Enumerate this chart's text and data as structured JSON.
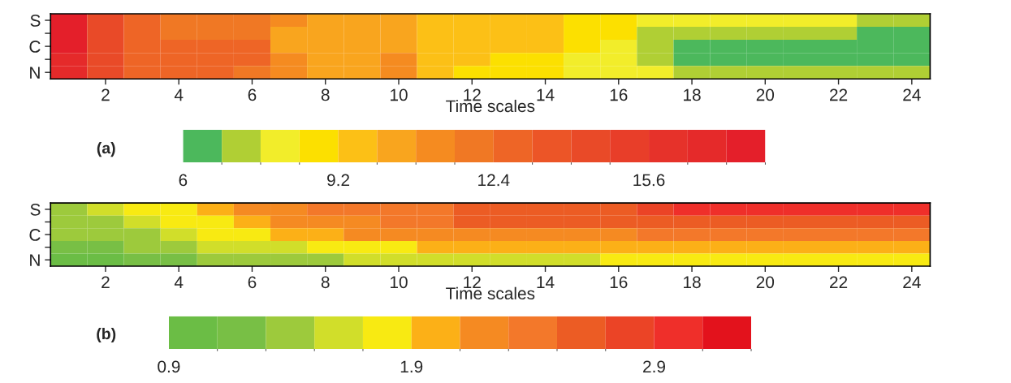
{
  "chart_data": [
    {
      "type": "heatmap",
      "xlabel": "Time scales",
      "annotations": [
        "(a)"
      ],
      "categories": [
        null,
        "2",
        null,
        "4",
        null,
        "6",
        null,
        "8",
        null,
        "10",
        null,
        "12",
        null,
        "14",
        null,
        "16",
        null,
        "18",
        null,
        "20",
        null,
        "22",
        null,
        "24"
      ],
      "y_categories": [
        "S",
        null,
        "C",
        null,
        "N"
      ],
      "cells": [
        [
          17.6,
          14.4,
          12.8,
          12.0,
          12.0,
          12.0,
          11.2,
          10.4,
          10.4,
          10.4,
          9.6,
          9.6,
          9.6,
          9.6,
          8.8,
          8.8,
          8.0,
          8.0,
          8.0,
          8.0,
          8.0,
          8.0,
          7.2,
          7.2
        ],
        [
          17.6,
          14.4,
          12.8,
          12.0,
          12.0,
          12.0,
          10.4,
          10.4,
          10.4,
          10.4,
          9.6,
          9.6,
          9.6,
          9.6,
          8.8,
          8.8,
          7.2,
          7.2,
          7.2,
          7.2,
          7.2,
          7.2,
          6.4,
          6.4
        ],
        [
          17.6,
          14.4,
          12.8,
          12.8,
          12.8,
          12.8,
          10.4,
          10.4,
          10.4,
          10.4,
          9.6,
          9.6,
          9.6,
          9.6,
          8.8,
          8.0,
          7.2,
          6.4,
          6.4,
          6.4,
          6.4,
          6.4,
          6.4,
          6.4
        ],
        [
          16.8,
          14.4,
          12.8,
          12.8,
          12.8,
          12.8,
          11.2,
          10.4,
          10.4,
          11.2,
          9.6,
          9.6,
          8.8,
          8.8,
          8.0,
          8.0,
          7.2,
          6.4,
          6.4,
          6.4,
          6.4,
          6.4,
          6.4,
          6.4
        ],
        [
          16.8,
          14.4,
          12.8,
          12.8,
          12.8,
          12.0,
          11.2,
          10.4,
          10.4,
          11.2,
          9.6,
          8.8,
          8.8,
          8.8,
          8.0,
          8.0,
          8.0,
          7.2,
          7.2,
          7.2,
          7.2,
          7.2,
          7.2,
          7.2
        ]
      ],
      "clim": [
        6,
        18
      ],
      "cticks": [
        6,
        9.2,
        12.4,
        15.6
      ],
      "colors": [
        "#4cb85c",
        "#b0cf34",
        "#f2ed2a",
        "#fce000",
        "#fcc016",
        "#f9a51e",
        "#f58b20",
        "#f07824",
        "#ee6526",
        "#ec5527",
        "#e94a28",
        "#e83e29",
        "#e6322a",
        "#e52a2a",
        "#e41f2a"
      ]
    },
    {
      "type": "heatmap",
      "xlabel": "Time scales",
      "annotations": [
        "(b)"
      ],
      "categories": [
        null,
        "2",
        null,
        "4",
        null,
        "6",
        null,
        "8",
        null,
        "10",
        null,
        "12",
        null,
        "14",
        null,
        "16",
        null,
        "18",
        null,
        "20",
        null,
        "22",
        null,
        "24"
      ],
      "y_categories": [
        "S",
        null,
        "C",
        null,
        "N"
      ],
      "cells": [
        [
          1.4,
          1.6,
          1.8,
          1.8,
          2.0,
          2.2,
          2.2,
          2.4,
          2.4,
          2.4,
          2.4,
          2.6,
          2.6,
          2.6,
          2.6,
          2.6,
          2.8,
          3.0,
          3.0,
          3.0,
          3.0,
          3.0,
          3.0,
          3.0
        ],
        [
          1.4,
          1.4,
          1.6,
          1.8,
          1.8,
          2.0,
          2.2,
          2.2,
          2.2,
          2.4,
          2.4,
          2.6,
          2.6,
          2.6,
          2.6,
          2.6,
          2.6,
          2.6,
          2.6,
          2.6,
          2.6,
          2.6,
          2.6,
          2.6
        ],
        [
          1.4,
          1.4,
          1.4,
          1.6,
          1.8,
          1.8,
          2.0,
          2.0,
          2.2,
          2.2,
          2.2,
          2.2,
          2.2,
          2.2,
          2.2,
          2.2,
          2.4,
          2.4,
          2.4,
          2.4,
          2.4,
          2.4,
          2.4,
          2.4
        ],
        [
          1.2,
          1.2,
          1.4,
          1.4,
          1.6,
          1.6,
          1.6,
          1.8,
          1.8,
          1.8,
          2.0,
          2.0,
          2.0,
          2.0,
          2.0,
          2.0,
          2.0,
          2.0,
          2.0,
          2.0,
          2.0,
          2.0,
          2.0,
          2.0
        ],
        [
          1.0,
          1.0,
          1.2,
          1.2,
          1.4,
          1.4,
          1.4,
          1.4,
          1.6,
          1.6,
          1.6,
          1.6,
          1.6,
          1.6,
          1.6,
          1.8,
          1.8,
          1.8,
          1.8,
          1.8,
          1.8,
          1.8,
          1.8,
          1.8
        ]
      ],
      "clim": [
        0.9,
        3.3
      ],
      "cticks": [
        0.9,
        1.9,
        2.9
      ],
      "colors": [
        "#6bbd45",
        "#78bf45",
        "#9dca3c",
        "#d1de2a",
        "#f8ea12",
        "#fcb017",
        "#f58a22",
        "#f3782a",
        "#ec5c24",
        "#eb4426",
        "#ef2f2a",
        "#e3121c"
      ]
    }
  ]
}
